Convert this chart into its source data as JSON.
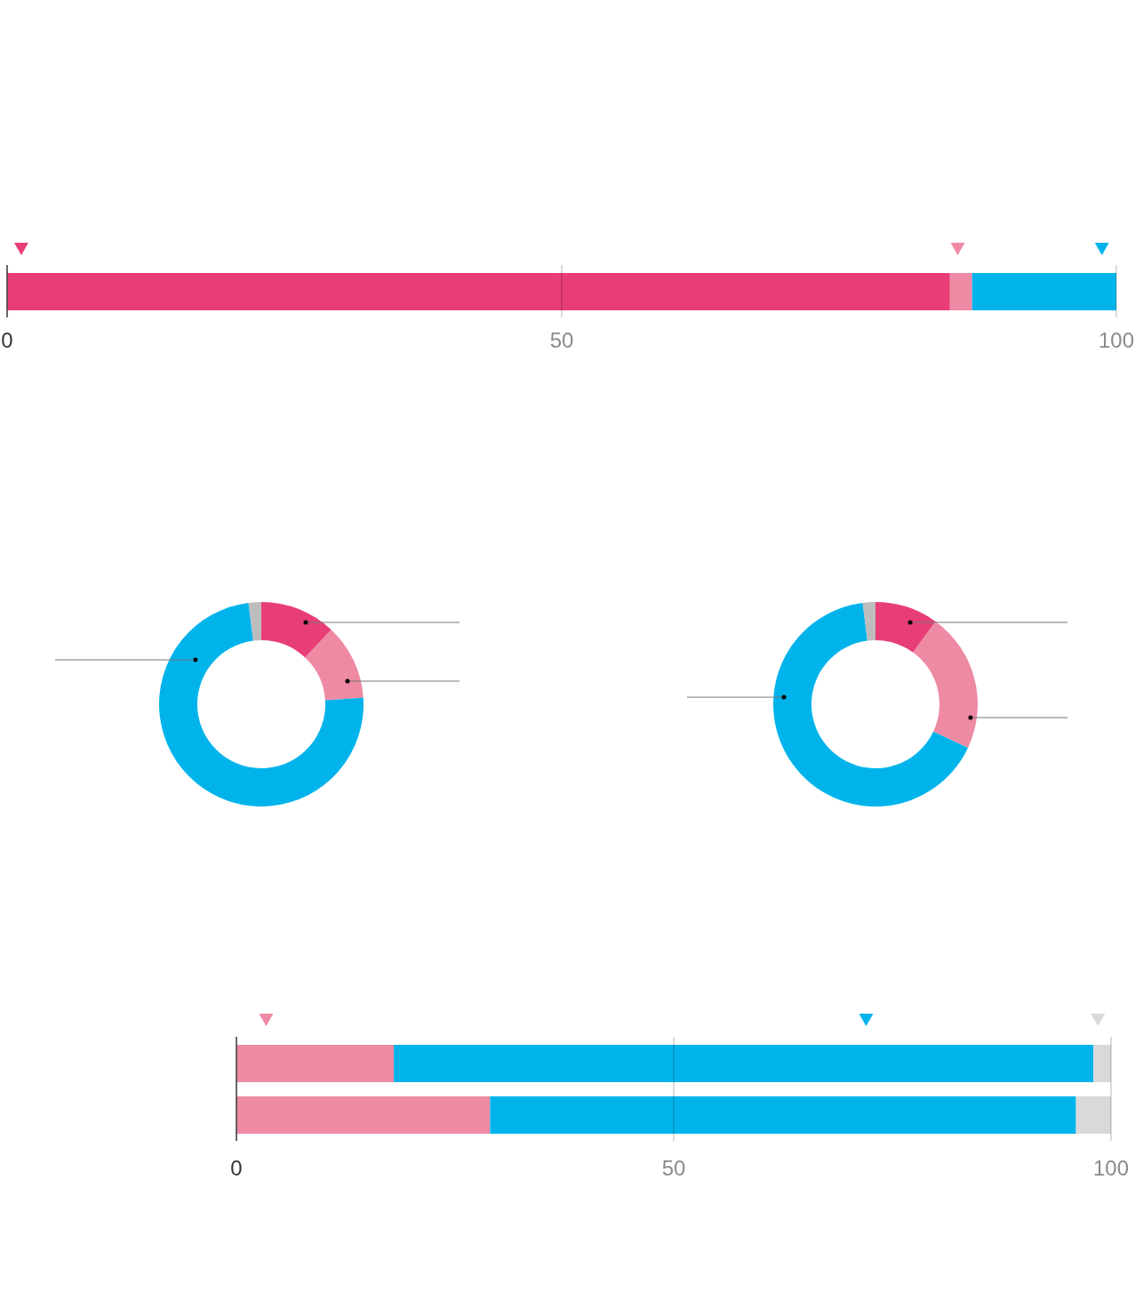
{
  "chart_data": [
    {
      "type": "bar",
      "orientation": "horizontal",
      "stacked": true,
      "categories": [
        null
      ],
      "series": [
        {
          "color": "#e83e77",
          "values": [
            85
          ]
        },
        {
          "color": "#ee8aa3",
          "values": [
            2
          ]
        },
        {
          "color": "#00b4eb",
          "values": [
            13
          ]
        }
      ],
      "xlim": [
        0,
        100
      ],
      "xticks": [
        0,
        50,
        100
      ],
      "grid": "x"
    },
    {
      "type": "donut",
      "categories": [
        null,
        null,
        null,
        null
      ],
      "values": [
        12,
        12,
        74,
        2
      ],
      "colors": [
        "#e83e77",
        "#ee8aa3",
        "#00b4eb",
        "#bdbdbd"
      ]
    },
    {
      "type": "donut",
      "categories": [
        null,
        null,
        null,
        null
      ],
      "values": [
        10,
        22,
        66,
        2
      ],
      "colors": [
        "#e83e77",
        "#ee8aa3",
        "#00b4eb",
        "#bdbdbd"
      ]
    },
    {
      "type": "bar",
      "orientation": "horizontal",
      "stacked": true,
      "categories": [
        null,
        null
      ],
      "series": [
        {
          "color": "#ee8aa3",
          "values": [
            18,
            29
          ]
        },
        {
          "color": "#00b4eb",
          "values": [
            80,
            67
          ]
        },
        {
          "color": "#d9d9d9",
          "values": [
            2,
            4
          ]
        }
      ],
      "xlim": [
        0,
        100
      ],
      "xticks": [
        0,
        50,
        100
      ],
      "grid": "x"
    }
  ]
}
